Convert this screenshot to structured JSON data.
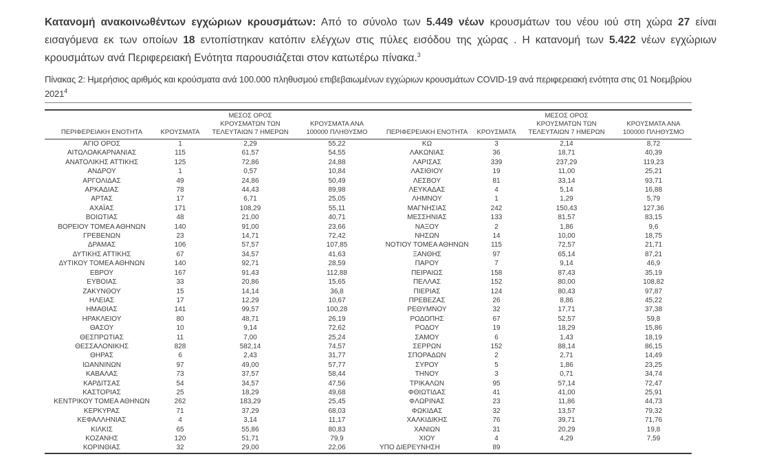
{
  "colors": {
    "text": "#3b3b3b",
    "rule_light": "#808080",
    "rule_dark": "#424242"
  },
  "intro": {
    "s1_bold": "Κατανομή ανακοινωθέντων εγχώριων κρουσμάτων:",
    "s2": " Από το σύνολο των ",
    "s3_bold": "5.449 νέων",
    "s4": " κρουσμάτων του νέου ιού στη χώρα ",
    "s5_bold": "27",
    "s6": " είναι εισαγόμενα εκ των οποίων ",
    "s7_bold": "18",
    "s8": " εντοπίστηκαν κατόπιν ελέγχων στις πύλες εισόδου της χώρας .  Η κατανομή των ",
    "s9_bold": "5.422",
    "s10": " νέων εγχώριων κρουσμάτων ανά Περιφερειακή Ενότητα παρουσιάζεται στον κατωτέρω πίνακα.",
    "footnote_ref": "3"
  },
  "caption": {
    "text": "Πίνακας 2:  Ημερήσιος αριθμός και κρούσματα ανά 100.000 πληθυσμού επιβεβαιωμένων εγχώριων κρουσμάτων COVID-19 ανά περιφερειακή ενότητα στις 01 Νοεμβρίου 2021",
    "footnote_ref": "4"
  },
  "table": {
    "headers": [
      "ΠΕΡΙΦΕΡΕΙΑΚΗ ΕΝΟΤΗΤΑ",
      "ΚΡΟΥΣΜΑΤΑ",
      "ΜΕΣΟΣ ΟΡΟΣ ΚΡΟΥΣΜΑΤΩΝ ΤΩΝ ΤΕΛΕΥΤΑΙΩΝ 7 ΗΜΕΡΩΝ",
      "ΚΡΟΥΣΜΑΤΑ ΑΝΑ 100000 ΠΛΗΘΥΣΜΟ"
    ],
    "left_rows": [
      [
        "ΑΓΙΟ ΟΡΟΣ",
        "1",
        "2,29",
        "55,22"
      ],
      [
        "ΑΙΤΩΛΟΑΚΑΡΝΑΝΙΑΣ",
        "115",
        "61,57",
        "54,55"
      ],
      [
        "ΑΝΑΤΟΛΙΚΗΣ ΑΤΤΙΚΗΣ",
        "125",
        "72,86",
        "24,88"
      ],
      [
        "ΑΝΔΡΟΥ",
        "1",
        "0,57",
        "10,84"
      ],
      [
        "ΑΡΓΟΛΙΔΑΣ",
        "49",
        "24,86",
        "50,49"
      ],
      [
        "ΑΡΚΑΔΙΑΣ",
        "78",
        "44,43",
        "89,98"
      ],
      [
        "ΑΡΤΑΣ",
        "17",
        "6,71",
        "25,05"
      ],
      [
        "ΑΧΑΪΑΣ",
        "171",
        "108,29",
        "55,11"
      ],
      [
        "ΒΟΙΩΤΙΑΣ",
        "48",
        "21,00",
        "40,71"
      ],
      [
        "ΒΟΡΕΙΟΥ ΤΟΜΕΑ ΑΘΗΝΩΝ",
        "140",
        "91,00",
        "23,66"
      ],
      [
        "ΓΡΕΒΕΝΩΝ",
        "23",
        "14,71",
        "72,42"
      ],
      [
        "ΔΡΑΜΑΣ",
        "106",
        "57,57",
        "107,85"
      ],
      [
        "ΔΥΤΙΚΗΣ ΑΤΤΙΚΗΣ",
        "67",
        "34,57",
        "41,63"
      ],
      [
        "ΔΥΤΙΚΟΥ ΤΟΜΕΑ ΑΘΗΝΩΝ",
        "140",
        "92,71",
        "28,59"
      ],
      [
        "ΕΒΡΟΥ",
        "167",
        "91,43",
        "112,88"
      ],
      [
        "ΕΥΒΟΙΑΣ",
        "33",
        "20,86",
        "15,65"
      ],
      [
        "ΖΑΚΥΝΘΟΥ",
        "15",
        "14,14",
        "36,8"
      ],
      [
        "ΗΛΕΙΑΣ",
        "17",
        "12,29",
        "10,67"
      ],
      [
        "ΗΜΑΘΙΑΣ",
        "141",
        "99,57",
        "100,28"
      ],
      [
        "ΗΡΑΚΛΕΙΟΥ",
        "80",
        "48,71",
        "26,19"
      ],
      [
        "ΘΑΣΟΥ",
        "10",
        "9,14",
        "72,62"
      ],
      [
        "ΘΕΣΠΡΩΤΙΑΣ",
        "11",
        "7,00",
        "25,24"
      ],
      [
        "ΘΕΣΣΑΛΟΝΙΚΗΣ",
        "828",
        "582,14",
        "74,57"
      ],
      [
        "ΘΗΡΑΣ",
        "6",
        "2,43",
        "31,77"
      ],
      [
        "ΙΩΑΝΝΙΝΩΝ",
        "97",
        "49,00",
        "57,77"
      ],
      [
        "ΚΑΒΑΛΑΣ",
        "73",
        "37,57",
        "58,44"
      ],
      [
        "ΚΑΡΔΙΤΣΑΣ",
        "54",
        "34,57",
        "47,56"
      ],
      [
        "ΚΑΣΤΟΡΙΑΣ",
        "25",
        "18,29",
        "49,68"
      ],
      [
        "ΚΕΝΤΡΙΚΟΥ ΤΟΜΕΑ ΑΘΗΝΩΝ",
        "262",
        "183,29",
        "25,45"
      ],
      [
        "ΚΕΡΚΥΡΑΣ",
        "71",
        "37,29",
        "68,03"
      ],
      [
        "ΚΕΦΑΛΛΗΝΙΑΣ",
        "4",
        "3,14",
        "11,17"
      ],
      [
        "ΚΙΛΚΙΣ",
        "65",
        "55,86",
        "80,83"
      ],
      [
        "ΚΟΖΑΝΗΣ",
        "120",
        "51,71",
        "79,9"
      ],
      [
        "ΚΟΡΙΝΘΙΑΣ",
        "32",
        "29,00",
        "22,06"
      ]
    ],
    "right_rows": [
      [
        "ΚΩ",
        "3",
        "2,14",
        "8,72"
      ],
      [
        "ΛΑΚΩΝΙΑΣ",
        "36",
        "18,71",
        "40,39"
      ],
      [
        "ΛΑΡΙΣΑΣ",
        "339",
        "237,29",
        "119,23"
      ],
      [
        "ΛΑΣΙΘΙΟΥ",
        "19",
        "11,00",
        "25,21"
      ],
      [
        "ΛΕΣΒΟΥ",
        "81",
        "33,14",
        "93,71"
      ],
      [
        "ΛΕΥΚΑΔΑΣ",
        "4",
        "5,14",
        "16,88"
      ],
      [
        "ΛΗΜΝΟΥ",
        "1",
        "1,29",
        "5,79"
      ],
      [
        "ΜΑΓΝΗΣΙΑΣ",
        "242",
        "150,43",
        "127,36"
      ],
      [
        "ΜΕΣΣΗΝΙΑΣ",
        "133",
        "81,57",
        "83,15"
      ],
      [
        "ΝΑΞΟΥ",
        "2",
        "1,86",
        "9,6"
      ],
      [
        "ΝΗΣΩΝ",
        "14",
        "10,00",
        "18,75"
      ],
      [
        "ΝΟΤΙΟΥ ΤΟΜΕΑ ΑΘΗΝΩΝ",
        "115",
        "72,57",
        "21,71"
      ],
      [
        "ΞΑΝΘΗΣ",
        "97",
        "65,14",
        "87,21"
      ],
      [
        "ΠΑΡΟΥ",
        "7",
        "9,14",
        "46,9"
      ],
      [
        "ΠΕΙΡΑΙΩΣ",
        "158",
        "87,43",
        "35,19"
      ],
      [
        "ΠΕΛΛΑΣ",
        "152",
        "80,00",
        "108,82"
      ],
      [
        "ΠΙΕΡΙΑΣ",
        "124",
        "80,43",
        "97,87"
      ],
      [
        "ΠΡΕΒΕΖΑΣ",
        "26",
        "8,86",
        "45,22"
      ],
      [
        "ΡΕΘΥΜΝΟΥ",
        "32",
        "17,71",
        "37,38"
      ],
      [
        "ΡΟΔΟΠΗΣ",
        "67",
        "52,57",
        "59,8"
      ],
      [
        "ΡΟΔΟΥ",
        "19",
        "18,29",
        "15,86"
      ],
      [
        "ΣΑΜΟΥ",
        "6",
        "1,43",
        "18,19"
      ],
      [
        "ΣΕΡΡΩΝ",
        "152",
        "88,14",
        "86,15"
      ],
      [
        "ΣΠΟΡΑΔΩΝ",
        "2",
        "2,71",
        "14,49"
      ],
      [
        "ΣΥΡΟΥ",
        "5",
        "1,86",
        "23,25"
      ],
      [
        "ΤΗΝΟΥ",
        "3",
        "0,71",
        "34,74"
      ],
      [
        "ΤΡΙΚΑΛΩΝ",
        "95",
        "57,14",
        "72,47"
      ],
      [
        "ΦΘΙΩΤΙΔΑΣ",
        "41",
        "41,00",
        "25,91"
      ],
      [
        "ΦΛΩΡΙΝΑΣ",
        "23",
        "11,86",
        "44,73"
      ],
      [
        "ΦΩΚΙΔΑΣ",
        "32",
        "13,57",
        "79,32"
      ],
      [
        "ΧΑΛΚΙΔΙΚΗΣ",
        "76",
        "39,71",
        "71,76"
      ],
      [
        "ΧΑΝΙΩΝ",
        "31",
        "20,29",
        "19,8"
      ],
      [
        "ΧΙΟΥ",
        "4",
        "4,29",
        "7,59"
      ],
      [
        "ΥΠΟ ΔΙΕΡΕΥΝΗΣΗ",
        "89",
        "",
        ""
      ]
    ]
  }
}
